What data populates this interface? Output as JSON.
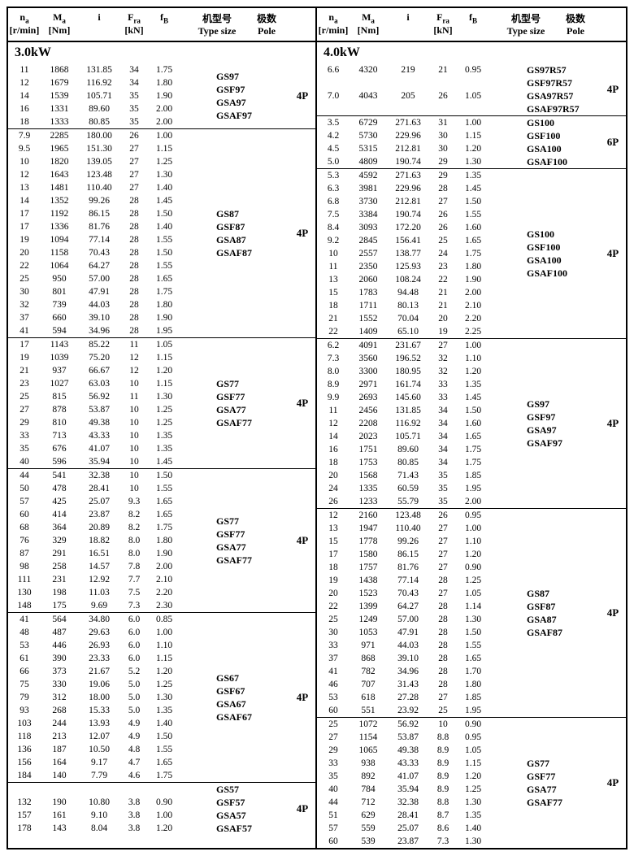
{
  "headers": {
    "na": "nₐ",
    "na_unit": "[r/min]",
    "ma": "Mₐ",
    "ma_unit": "[Nm]",
    "i": "i",
    "fra": "Fᵣₐ",
    "fra_unit": "[kN]",
    "fb": "f_B",
    "type_cn": "机型号",
    "type_en": "Type size",
    "pole_cn": "极数",
    "pole_en": "Pole"
  },
  "left": {
    "power": "3.0kW",
    "sections": [
      {
        "rows": [
          [
            11,
            1868,
            "131.85",
            34,
            "1.75"
          ],
          [
            12,
            1679,
            "116.92",
            34,
            "1.80"
          ],
          [
            14,
            1539,
            "105.71",
            35,
            "1.90"
          ],
          [
            16,
            1331,
            "89.60",
            35,
            "2.00"
          ],
          [
            18,
            1333,
            "80.85",
            35,
            "2.00"
          ]
        ],
        "types": [
          "GS97",
          "GSF97",
          "GSA97",
          "GSAF97"
        ],
        "pole": "4P"
      },
      {
        "rows": [
          [
            "7.9",
            2285,
            "180.00",
            26,
            "1.00"
          ],
          [
            "9.5",
            1965,
            "151.30",
            27,
            "1.15"
          ],
          [
            10,
            1820,
            "139.05",
            27,
            "1.25"
          ],
          [
            12,
            1643,
            "123.48",
            27,
            "1.30"
          ],
          [
            13,
            1481,
            "110.40",
            27,
            "1.40"
          ],
          [
            14,
            1352,
            "99.26",
            28,
            "1.45"
          ],
          [
            17,
            1192,
            "86.15",
            28,
            "1.50"
          ],
          [
            17,
            1336,
            "81.76",
            28,
            "1.40"
          ],
          [
            19,
            1094,
            "77.14",
            28,
            "1.55"
          ],
          [
            20,
            1158,
            "70.43",
            28,
            "1.50"
          ],
          [
            22,
            1064,
            "64.27",
            28,
            "1.55"
          ],
          [
            25,
            950,
            "57.00",
            28,
            "1.65"
          ],
          [
            30,
            801,
            "47.91",
            28,
            "1.75"
          ],
          [
            32,
            739,
            "44.03",
            28,
            "1.80"
          ],
          [
            37,
            660,
            "39.10",
            28,
            "1.90"
          ],
          [
            41,
            594,
            "34.96",
            28,
            "1.95"
          ]
        ],
        "types": [
          "GS87",
          "GSF87",
          "GSA87",
          "GSAF87"
        ],
        "pole": "4P"
      },
      {
        "rows": [
          [
            17,
            1143,
            "85.22",
            11,
            "1.05"
          ],
          [
            19,
            1039,
            "75.20",
            12,
            "1.15"
          ],
          [
            21,
            937,
            "66.67",
            12,
            "1.20"
          ],
          [
            23,
            1027,
            "63.03",
            10,
            "1.15"
          ],
          [
            25,
            815,
            "56.92",
            11,
            "1.30"
          ],
          [
            27,
            878,
            "53.87",
            10,
            "1.25"
          ],
          [
            29,
            810,
            "49.38",
            10,
            "1.25"
          ],
          [
            33,
            713,
            "43.33",
            10,
            "1.35"
          ],
          [
            35,
            676,
            "41.07",
            10,
            "1.35"
          ],
          [
            40,
            596,
            "35.94",
            10,
            "1.45"
          ]
        ],
        "types": [
          "GS77",
          "GSF77",
          "GSA77",
          "GSAF77"
        ],
        "pole": "4P"
      },
      {
        "rows": [
          [
            44,
            541,
            "32.38",
            10,
            "1.50"
          ],
          [
            50,
            478,
            "28.41",
            10,
            "1.55"
          ],
          [
            57,
            425,
            "25.07",
            "9.3",
            "1.65"
          ],
          [
            60,
            414,
            "23.87",
            "8.2",
            "1.65"
          ],
          [
            68,
            364,
            "20.89",
            "8.2",
            "1.75"
          ],
          [
            76,
            329,
            "18.82",
            "8.0",
            "1.80"
          ],
          [
            87,
            291,
            "16.51",
            "8.0",
            "1.90"
          ],
          [
            98,
            258,
            "14.57",
            "7.8",
            "2.00"
          ],
          [
            111,
            231,
            "12.92",
            "7.7",
            "2.10"
          ],
          [
            130,
            198,
            "11.03",
            "7.5",
            "2.20"
          ],
          [
            148,
            175,
            "9.69",
            "7.3",
            "2.30"
          ]
        ],
        "types": [
          "GS77",
          "GSF77",
          "GSA77",
          "GSAF77"
        ],
        "pole": "4P"
      },
      {
        "rows": [
          [
            41,
            564,
            "34.80",
            "6.0",
            "0.85"
          ],
          [
            48,
            487,
            "29.63",
            "6.0",
            "1.00"
          ],
          [
            53,
            446,
            "26.93",
            "6.0",
            "1.10"
          ],
          [
            61,
            390,
            "23.33",
            "6.0",
            "1.15"
          ],
          [
            66,
            373,
            "21.67",
            "5.2",
            "1.20"
          ],
          [
            75,
            330,
            "19.06",
            "5.0",
            "1.25"
          ],
          [
            79,
            312,
            "18.00",
            "5.0",
            "1.30"
          ],
          [
            93,
            268,
            "15.33",
            "5.0",
            "1.35"
          ],
          [
            103,
            244,
            "13.93",
            "4.9",
            "1.40"
          ],
          [
            118,
            213,
            "12.07",
            "4.9",
            "1.50"
          ],
          [
            136,
            187,
            "10.50",
            "4.8",
            "1.55"
          ],
          [
            156,
            164,
            "9.17",
            "4.7",
            "1.65"
          ],
          [
            184,
            140,
            "7.79",
            "4.6",
            "1.75"
          ]
        ],
        "types": [
          "GS67",
          "GSF67",
          "GSA67",
          "GSAF67"
        ],
        "pole": "4P"
      },
      {
        "rows": [
          [
            "",
            "",
            "",
            "",
            ""
          ],
          [
            132,
            190,
            "10.80",
            "3.8",
            "0.90"
          ],
          [
            157,
            161,
            "9.10",
            "3.8",
            "1.00"
          ],
          [
            178,
            143,
            "8.04",
            "3.8",
            "1.20"
          ]
        ],
        "types": [
          "GS57",
          "GSF57",
          "GSA57",
          "GSAF57"
        ],
        "pole": "4P"
      }
    ]
  },
  "right": {
    "power": "4.0kW",
    "sections": [
      {
        "rows": [
          [
            "6.6",
            4320,
            219,
            21,
            "0.95"
          ],
          [
            "",
            "",
            "",
            "",
            ""
          ],
          [
            "7.0",
            4043,
            205,
            26,
            "1.05"
          ]
        ],
        "types": [
          "GS97R57",
          "GSF97R57",
          "GSA97R57",
          "GSAF97R57"
        ],
        "pole": "4P"
      },
      {
        "rows": [
          [
            "3.5",
            6729,
            "271.63",
            31,
            "1.00"
          ],
          [
            "4.2",
            5730,
            "229.96",
            30,
            "1.15"
          ],
          [
            "4.5",
            5315,
            "212.81",
            30,
            "1.20"
          ],
          [
            "5.0",
            4809,
            "190.74",
            29,
            "1.30"
          ]
        ],
        "types": [
          "GS100",
          "GSF100",
          "GSA100",
          "GSAF100"
        ],
        "pole": "6P"
      },
      {
        "rows": [
          [
            "5.3",
            4592,
            "271.63",
            29,
            "1.35"
          ],
          [
            "6.3",
            3981,
            "229.96",
            28,
            "1.45"
          ],
          [
            "6.8",
            3730,
            "212.81",
            27,
            "1.50"
          ],
          [
            "7.5",
            3384,
            "190.74",
            26,
            "1.55"
          ],
          [
            "8.4",
            3093,
            "172.20",
            26,
            "1.60"
          ],
          [
            "9.2",
            2845,
            "156.41",
            25,
            "1.65"
          ],
          [
            10,
            2557,
            "138.77",
            24,
            "1.75"
          ],
          [
            11,
            2350,
            "125.93",
            23,
            "1.80"
          ],
          [
            13,
            2060,
            "108.24",
            22,
            "1.90"
          ],
          [
            15,
            1783,
            "94.48",
            21,
            "2.00"
          ],
          [
            18,
            1711,
            "80.13",
            21,
            "2.10"
          ],
          [
            21,
            1552,
            "70.04",
            20,
            "2.20"
          ],
          [
            22,
            1409,
            "65.10",
            19,
            "2.25"
          ]
        ],
        "types": [
          "GS100",
          "GSF100",
          "GSA100",
          "GSAF100"
        ],
        "pole": "4P"
      },
      {
        "rows": [
          [
            "6.2",
            4091,
            "231.67",
            27,
            "1.00"
          ],
          [
            "7.3",
            3560,
            "196.52",
            32,
            "1.10"
          ],
          [
            "8.0",
            3300,
            "180.95",
            32,
            "1.20"
          ],
          [
            "8.9",
            2971,
            "161.74",
            33,
            "1.35"
          ],
          [
            "9.9",
            2693,
            "145.60",
            33,
            "1.45"
          ],
          [
            11,
            2456,
            "131.85",
            34,
            "1.50"
          ],
          [
            12,
            2208,
            "116.92",
            34,
            "1.60"
          ],
          [
            14,
            2023,
            "105.71",
            34,
            "1.65"
          ],
          [
            16,
            1751,
            "89.60",
            34,
            "1.75"
          ],
          [
            18,
            1753,
            "80.85",
            34,
            "1.75"
          ],
          [
            20,
            1568,
            "71.43",
            35,
            "1.85"
          ],
          [
            24,
            1335,
            "60.59",
            35,
            "1.95"
          ],
          [
            26,
            1233,
            "55.79",
            35,
            "2.00"
          ]
        ],
        "types": [
          "GS97",
          "GSF97",
          "GSA97",
          "GSAF97"
        ],
        "pole": "4P"
      },
      {
        "rows": [
          [
            12,
            2160,
            "123.48",
            26,
            "0.95"
          ],
          [
            13,
            1947,
            "110.40",
            27,
            "1.00"
          ],
          [
            15,
            1778,
            "99.26",
            27,
            "1.10"
          ],
          [
            17,
            1580,
            "86.15",
            27,
            "1.20"
          ],
          [
            18,
            1757,
            "81.76",
            27,
            "0.90"
          ],
          [
            19,
            1438,
            "77.14",
            28,
            "1.25"
          ],
          [
            20,
            1523,
            "70.43",
            27,
            "1.05"
          ],
          [
            22,
            1399,
            "64.27",
            28,
            "1.14"
          ],
          [
            25,
            1249,
            "57.00",
            28,
            "1.30"
          ],
          [
            30,
            1053,
            "47.91",
            28,
            "1.50"
          ],
          [
            33,
            971,
            "44.03",
            28,
            "1.55"
          ],
          [
            37,
            868,
            "39.10",
            28,
            "1.65"
          ],
          [
            41,
            782,
            "34.96",
            28,
            "1.70"
          ],
          [
            46,
            707,
            "31.43",
            28,
            "1.80"
          ],
          [
            53,
            618,
            "27.28",
            27,
            "1.85"
          ],
          [
            60,
            551,
            "23.92",
            25,
            "1.95"
          ]
        ],
        "types": [
          "GS87",
          "GSF87",
          "GSA87",
          "GSAF87"
        ],
        "pole": "4P"
      },
      {
        "rows": [
          [
            25,
            1072,
            "56.92",
            10,
            "0.90"
          ],
          [
            27,
            1154,
            "53.87",
            "8.8",
            "0.95"
          ],
          [
            29,
            1065,
            "49.38",
            "8.9",
            "1.05"
          ],
          [
            33,
            938,
            "43.33",
            "8.9",
            "1.15"
          ],
          [
            35,
            892,
            "41.07",
            "8.9",
            "1.20"
          ],
          [
            40,
            784,
            "35.94",
            "8.9",
            "1.25"
          ],
          [
            44,
            712,
            "32.38",
            "8.8",
            "1.30"
          ],
          [
            51,
            629,
            "28.41",
            "8.7",
            "1.35"
          ],
          [
            57,
            559,
            "25.07",
            "8.6",
            "1.40"
          ],
          [
            60,
            539,
            "23.87",
            "7.3",
            "1.30"
          ]
        ],
        "types": [
          "GS77",
          "GSF77",
          "GSA77",
          "GSAF77"
        ],
        "pole": "4P"
      }
    ]
  }
}
